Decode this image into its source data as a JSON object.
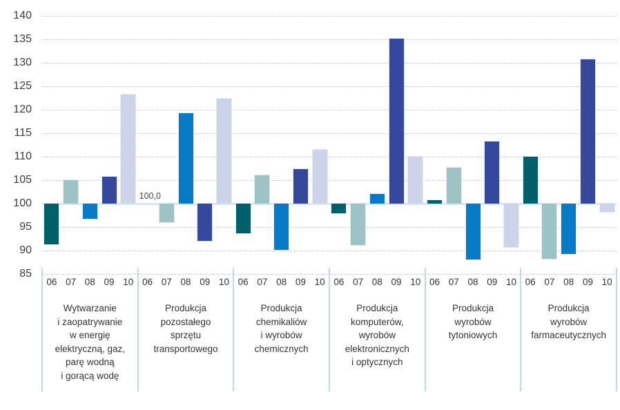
{
  "chart_data": {
    "type": "bar",
    "title": "",
    "xlabel": "",
    "ylabel": "",
    "ylim": [
      85,
      140
    ],
    "yticks": [
      140,
      135,
      130,
      125,
      120,
      115,
      110,
      105,
      100,
      95,
      90,
      85
    ],
    "baseline_value": 100,
    "grid": "horizontal-dotted",
    "legend_position": "none",
    "annotation": {
      "text": "100,0",
      "group_index": 1,
      "year": "06",
      "value": 100.0
    },
    "categories_years": [
      "06",
      "07",
      "08",
      "09",
      "10"
    ],
    "year_colors": {
      "06": "#006069",
      "07": "#9dc3c4",
      "08": "#077ac6",
      "09": "#36489b",
      "10": "#cdd3e8"
    },
    "groups": [
      {
        "label": "Wytwarzanie i zaopatrywanie w energię elektryczną, gaz, parę wodną i gorącą wodę",
        "label_lines": [
          "Wytwarzanie",
          "i zaopatrywanie",
          "w energię",
          "elektryczną, gaz,",
          "parę wodną",
          "i gorącą wodę"
        ],
        "values": [
          91.3,
          105.0,
          96.8,
          105.8,
          123.3
        ]
      },
      {
        "label": "Produkcja pozostałego sprzętu transportowego",
        "label_lines": [
          "Produkcja",
          "pozostałego",
          "sprzętu",
          "transportowego"
        ],
        "values": [
          100.0,
          96.1,
          119.2,
          92.1,
          122.4
        ]
      },
      {
        "label": "Produkcja chemikaliów i wyrobów chemicznych",
        "label_lines": [
          "Produkcja",
          "chemikaliów",
          "i wyrobów",
          "chemicznych"
        ],
        "values": [
          93.7,
          106.0,
          90.1,
          107.4,
          111.4
        ]
      },
      {
        "label": "Produkcja komputerów, wyrobów elektronicznych i optycznych",
        "label_lines": [
          "Produkcja",
          "komputerów,",
          "wyrobów",
          "elektronicznych",
          "i optycznych"
        ],
        "values": [
          97.9,
          91.2,
          102.0,
          135.2,
          110.0
        ]
      },
      {
        "label": "Produkcja wyrobów tytoniowych",
        "label_lines": [
          "Produkcja",
          "wyrobów",
          "tytoniowych"
        ],
        "values": [
          100.8,
          107.6,
          88.1,
          113.3,
          90.7
        ]
      },
      {
        "label": "Produkcja wyrobów farmaceutycznych",
        "label_lines": [
          "Produkcja",
          "wyrobów",
          "farmaceutycznych"
        ],
        "values": [
          110.0,
          88.3,
          89.2,
          130.7,
          98.3
        ]
      }
    ],
    "style_colors": {
      "gridline": "#c4c4c4",
      "baseline_band": "#d9e5f3",
      "separator": "#bdd7ee",
      "text": "#333333"
    }
  }
}
